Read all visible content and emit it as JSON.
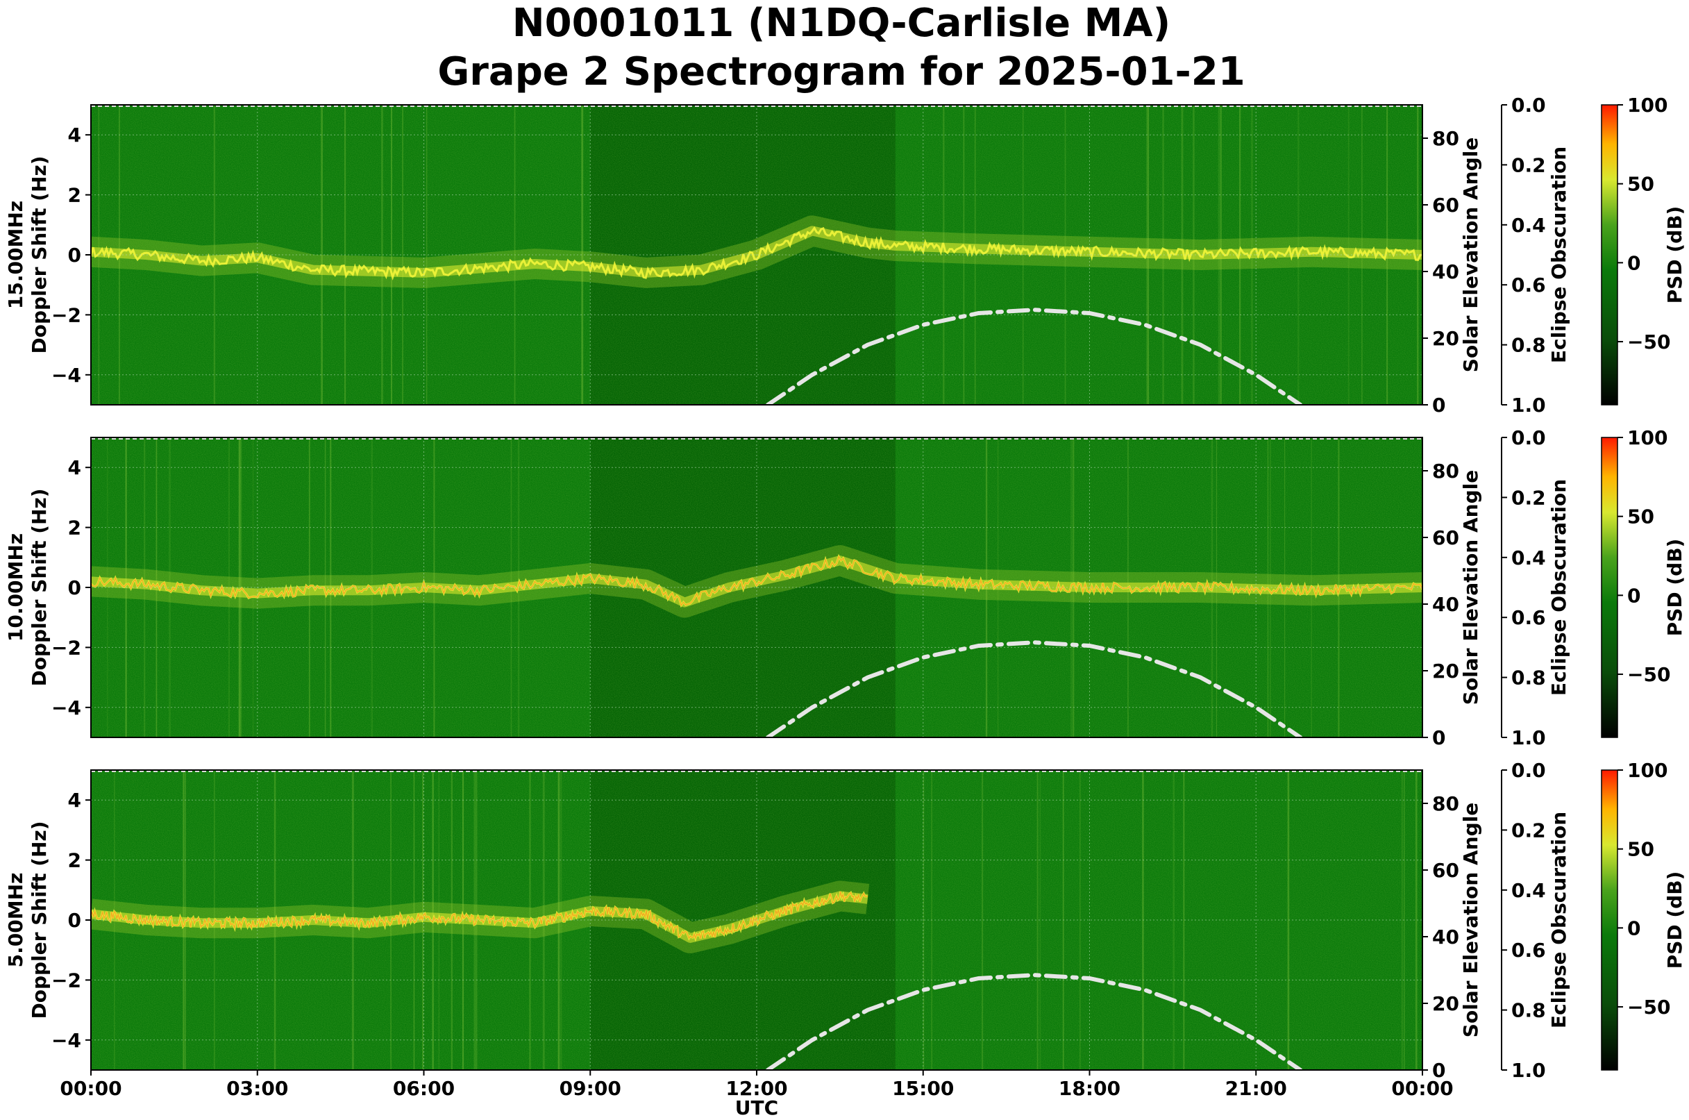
{
  "title_line1": "N0001011 (N1DQ-Carlisle MA)",
  "title_line2": "Grape 2 Spectrogram for 2025-01-21",
  "x_axis": {
    "label": "UTC",
    "ticks": [
      "00:00",
      "03:00",
      "06:00",
      "09:00",
      "12:00",
      "15:00",
      "18:00",
      "21:00",
      "00:00"
    ]
  },
  "colors": {
    "background_green": "#0b7a0b",
    "line_yellow": "#e8f030",
    "hot_red": "#ff2a00",
    "solar_curve": "#e6e6e6"
  },
  "colorbar": {
    "label": "PSD (dB)",
    "ticks": [
      "100",
      "50",
      "0",
      "−50"
    ],
    "range": [
      -90,
      100
    ],
    "colormap": "black-green-yellow-red"
  },
  "eclipse_axis": {
    "label": "Eclipse Obscuration",
    "ticks": [
      "0.0",
      "0.2",
      "0.4",
      "0.6",
      "0.8",
      "1.0"
    ]
  },
  "chart_data": [
    {
      "type": "heatmap",
      "panel": "15.00MHz",
      "ylabel_line1": "15.00MHz",
      "ylabel_line2": "Doppler Shift (Hz)",
      "y_ticks": [
        "4",
        "2",
        "0",
        "−2",
        "−4"
      ],
      "ylim": [
        -5,
        5
      ],
      "xlim_hours": [
        0,
        24
      ],
      "right_ylabel": "Solar Elevation Angle",
      "right_ticks": [
        "80",
        "60",
        "40",
        "20",
        "0"
      ],
      "right_ylim": [
        0,
        90
      ],
      "dark_band_hours": [
        9.0,
        14.5
      ],
      "doppler_trace": {
        "hours": [
          0,
          1,
          2,
          3,
          4,
          6,
          8,
          9,
          10,
          11,
          12,
          13,
          14,
          14.5,
          16,
          18,
          20,
          22,
          24
        ],
        "doppler_hz": [
          0.1,
          0.0,
          -0.2,
          -0.1,
          -0.5,
          -0.6,
          -0.3,
          -0.4,
          -0.6,
          -0.5,
          0.0,
          0.8,
          0.4,
          0.3,
          0.2,
          0.1,
          0.0,
          0.1,
          0.0
        ]
      },
      "solar_elevation": {
        "hours": [
          12.2,
          13,
          14,
          15,
          16,
          17,
          18,
          19,
          20,
          21,
          21.8
        ],
        "degrees": [
          0,
          9,
          18,
          24,
          27.5,
          28.5,
          27.5,
          24,
          18,
          9,
          0
        ]
      }
    },
    {
      "type": "heatmap",
      "panel": "10.00MHz",
      "ylabel_line1": "10.00MHz",
      "ylabel_line2": "Doppler Shift (Hz)",
      "y_ticks": [
        "4",
        "2",
        "0",
        "−2",
        "−4"
      ],
      "ylim": [
        -5,
        5
      ],
      "xlim_hours": [
        0,
        24
      ],
      "right_ylabel": "Solar Elevation Angle",
      "right_ticks": [
        "80",
        "60",
        "40",
        "20",
        "0"
      ],
      "right_ylim": [
        0,
        90
      ],
      "dark_band_hours": [
        9.0,
        14.5
      ],
      "doppler_trace": {
        "hours": [
          0,
          1,
          2,
          3,
          4,
          5,
          6,
          7,
          8,
          9,
          10,
          10.7,
          11.5,
          12.5,
          13.5,
          14.5,
          16,
          18,
          20,
          22,
          24
        ],
        "doppler_hz": [
          0.2,
          0.1,
          -0.1,
          -0.2,
          -0.1,
          -0.1,
          0.0,
          -0.1,
          0.1,
          0.3,
          0.1,
          -0.5,
          0.0,
          0.4,
          0.9,
          0.3,
          0.1,
          0.0,
          0.0,
          -0.1,
          0.0
        ]
      },
      "solar_elevation": {
        "hours": [
          12.2,
          13,
          14,
          15,
          16,
          17,
          18,
          19,
          20,
          21,
          21.8
        ],
        "degrees": [
          0,
          9,
          18,
          24,
          27.5,
          28.5,
          27.5,
          24,
          18,
          9,
          0
        ]
      }
    },
    {
      "type": "heatmap",
      "panel": "5.00MHz",
      "ylabel_line1": "5.00MHz",
      "ylabel_line2": "Doppler Shift (Hz)",
      "y_ticks": [
        "4",
        "2",
        "0",
        "−2",
        "−4"
      ],
      "ylim": [
        -5,
        5
      ],
      "xlim_hours": [
        0,
        24
      ],
      "right_ylabel": "Solar Elevation Angle",
      "right_ticks": [
        "80",
        "60",
        "40",
        "20",
        "0"
      ],
      "right_ylim": [
        0,
        90
      ],
      "dark_band_hours": [
        9.0,
        14.5
      ],
      "doppler_trace": {
        "hours": [
          0,
          1,
          2,
          3,
          4,
          5,
          6,
          7,
          8,
          9,
          10,
          10.8,
          11.5,
          12.5,
          13.5,
          14
        ],
        "doppler_hz": [
          0.2,
          0.0,
          -0.1,
          -0.1,
          0.0,
          -0.1,
          0.1,
          0.0,
          -0.1,
          0.3,
          0.2,
          -0.6,
          -0.3,
          0.3,
          0.8,
          0.7
        ]
      },
      "solar_elevation": {
        "hours": [
          12.2,
          13,
          14,
          15,
          16,
          17,
          18,
          19,
          20,
          21,
          21.8
        ],
        "degrees": [
          0,
          9,
          18,
          24,
          27.5,
          28.5,
          27.5,
          24,
          18,
          9,
          0
        ]
      }
    }
  ]
}
